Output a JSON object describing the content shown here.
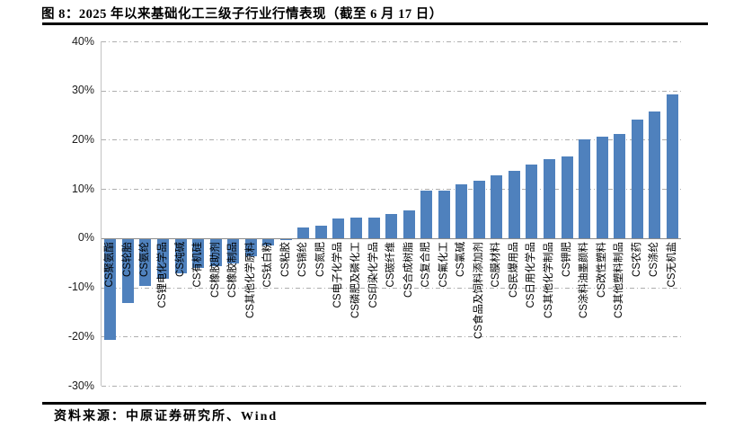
{
  "figure": {
    "title": "图 8：2025 年以来基础化工三级子行业行情表现（截至 6 月 17 日）",
    "source": "资料来源：中原证券研究所、Wind"
  },
  "chart_data": {
    "type": "bar",
    "title": "2025 年以来基础化工三级子行业行情表现（截至 6 月 17 日）",
    "xlabel": "",
    "ylabel": "",
    "ylim": [
      -30,
      40
    ],
    "yticks": [
      40,
      30,
      20,
      10,
      0,
      -10,
      -20,
      -30
    ],
    "ytick_suffix": "%",
    "grid": "horizontal dash-dot",
    "legend": "none",
    "bar_color": "#4F81BD",
    "categories": [
      "CS聚氨酯",
      "CS轮胎",
      "CS氨纶",
      "CS锂电化学品",
      "CS纯碱",
      "CS有机硅",
      "CS橡胶助剂",
      "CS橡胶制品",
      "CS其他化学原料",
      "CS钛白粉",
      "CS粘胶",
      "CS锦纶",
      "CS氮肥",
      "CS电子化学品",
      "CS磷肥及磷化工",
      "CS印染化学品",
      "CS碳纤维",
      "CS合成树脂",
      "CS复合肥",
      "CS氟化工",
      "CS氯碱",
      "CS食品及饲料添加剂",
      "CS膜材料",
      "CS民爆用品",
      "CS日用化学品",
      "CS其他化学制品",
      "CS钾肥",
      "CS涂料油墨颜料",
      "CS改性塑料",
      "CS其他塑料制品",
      "CS农药",
      "CS涤纶",
      "CS无机盐"
    ],
    "values": [
      -20.5,
      -13.0,
      -9.5,
      -8.0,
      -7.0,
      -5.8,
      -5.5,
      -5.0,
      -3.5,
      -1.3,
      -0.3,
      2.2,
      2.5,
      4.0,
      4.1,
      4.1,
      5.0,
      5.7,
      9.6,
      9.7,
      11.0,
      11.7,
      12.8,
      13.6,
      14.9,
      16.0,
      16.7,
      20.0,
      20.7,
      21.1,
      24.1,
      25.7,
      29.2
    ],
    "values_unit": "%"
  }
}
